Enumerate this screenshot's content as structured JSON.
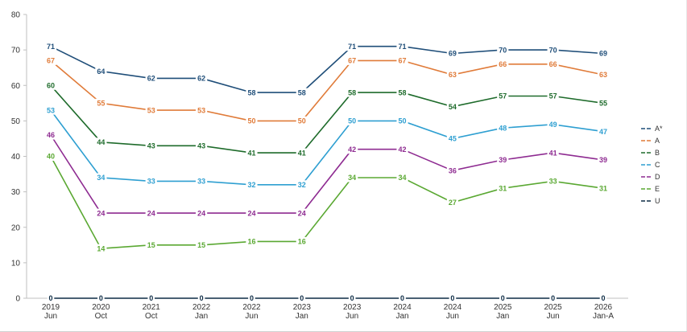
{
  "chart_data": {
    "type": "line",
    "title": "",
    "xlabel": "",
    "ylabel": "",
    "ylim": [
      0,
      80
    ],
    "yticks": [
      0,
      10,
      20,
      30,
      40,
      50,
      60,
      70,
      80
    ],
    "grid": false,
    "legend_position": "right",
    "categories": [
      {
        "year": "2019",
        "period": "Jun"
      },
      {
        "year": "2020",
        "period": "Oct"
      },
      {
        "year": "2021",
        "period": "Oct"
      },
      {
        "year": "2022",
        "period": "Jan"
      },
      {
        "year": "2022",
        "period": "Jun"
      },
      {
        "year": "2023",
        "period": "Jan"
      },
      {
        "year": "2023",
        "period": "Jun"
      },
      {
        "year": "2024",
        "period": "Jan"
      },
      {
        "year": "2024",
        "period": "Jun"
      },
      {
        "year": "2025",
        "period": "Jan"
      },
      {
        "year": "2025",
        "period": "Jun"
      },
      {
        "year": "2026",
        "period": "Jan-A"
      }
    ],
    "series": [
      {
        "name": "A*",
        "color": "#1f4e79",
        "values": [
          71,
          64,
          62,
          62,
          58,
          58,
          71,
          71,
          69,
          70,
          70,
          69
        ]
      },
      {
        "name": "A",
        "color": "#e07b39",
        "values": [
          67,
          55,
          53,
          53,
          50,
          50,
          67,
          67,
          63,
          66,
          66,
          63
        ]
      },
      {
        "name": "B",
        "color": "#1e6b2b",
        "values": [
          60,
          44,
          43,
          43,
          41,
          41,
          58,
          58,
          54,
          57,
          57,
          55
        ]
      },
      {
        "name": "C",
        "color": "#2e9fd1",
        "values": [
          53,
          34,
          33,
          33,
          32,
          32,
          50,
          50,
          45,
          48,
          49,
          47
        ]
      },
      {
        "name": "D",
        "color": "#8e2b91",
        "values": [
          46,
          24,
          24,
          24,
          24,
          24,
          42,
          42,
          36,
          39,
          41,
          39
        ]
      },
      {
        "name": "E",
        "color": "#5aa832",
        "values": [
          40,
          14,
          15,
          15,
          16,
          16,
          34,
          34,
          27,
          31,
          33,
          31
        ]
      },
      {
        "name": "U",
        "color": "#0d2b45",
        "values": [
          0,
          0,
          0,
          0,
          0,
          0,
          0,
          0,
          0,
          0,
          0,
          0
        ]
      }
    ]
  }
}
